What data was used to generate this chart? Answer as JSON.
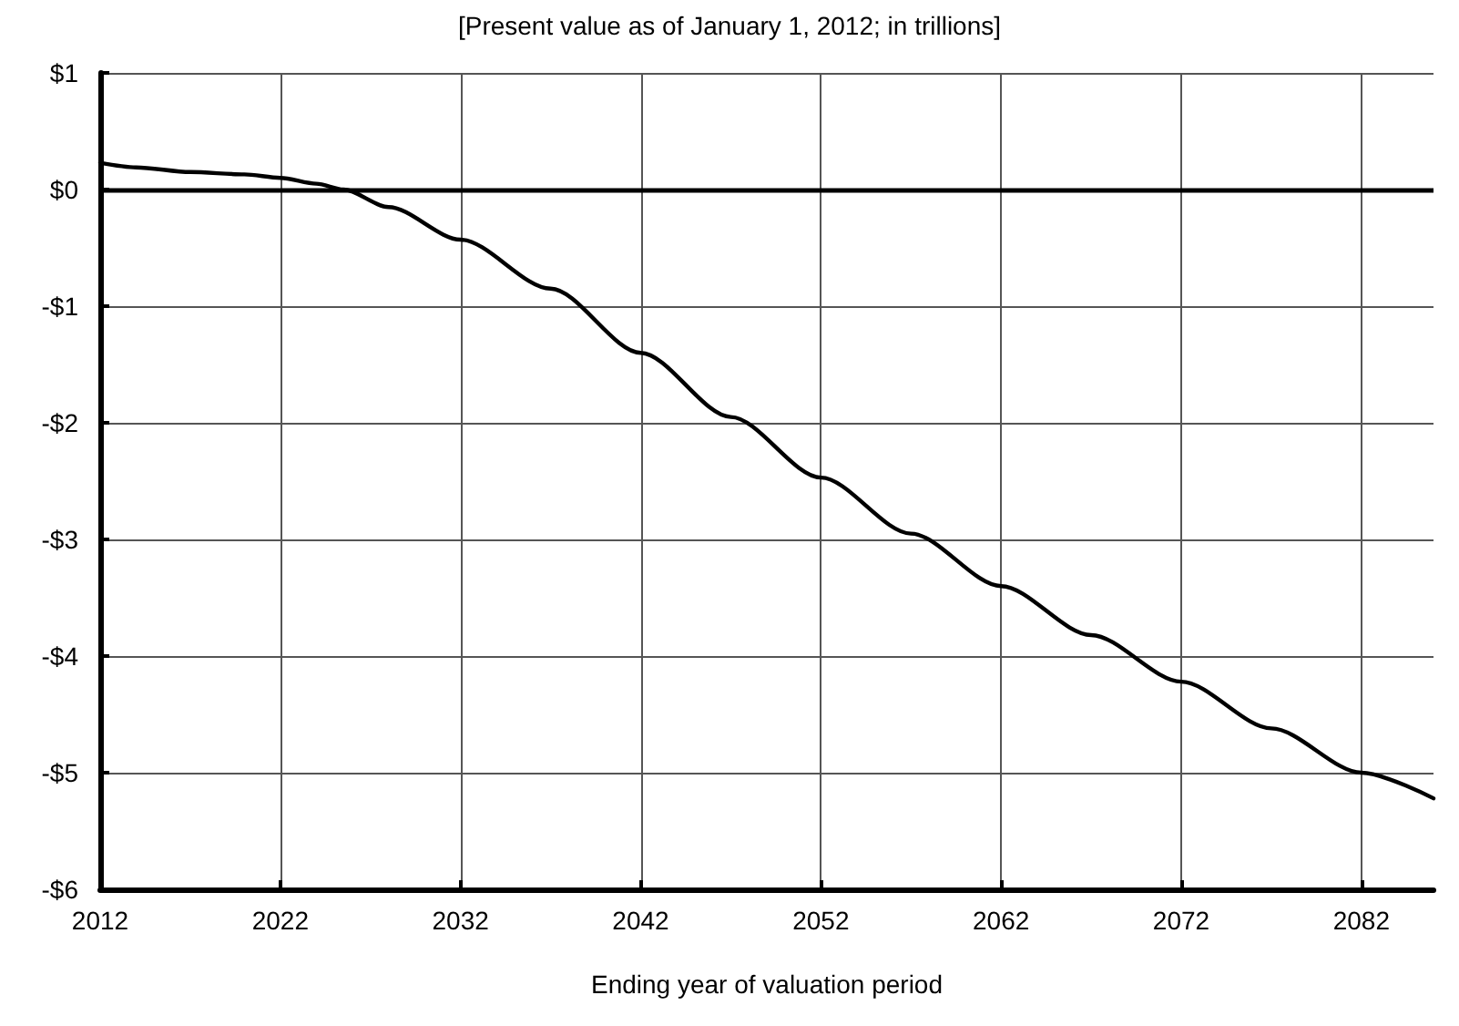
{
  "chart_data": {
    "type": "line",
    "subtitle": "[Present value as of January 1, 2012; in trillions]",
    "xlabel": "Ending year of valuation period",
    "x": [
      2012,
      2014,
      2017,
      2020,
      2022,
      2024,
      2025.5,
      2028,
      2032,
      2037,
      2042,
      2047,
      2052,
      2057,
      2062,
      2067,
      2072,
      2077,
      2082,
      2086
    ],
    "series": [
      {
        "color": "#000000",
        "values": [
          0.23,
          0.19,
          0.15,
          0.13,
          0.1,
          0.05,
          0,
          -0.15,
          -0.43,
          -0.85,
          -1.4,
          -1.95,
          -2.47,
          -2.95,
          -3.4,
          -3.82,
          -4.22,
          -4.62,
          -5.0,
          -5.22
        ]
      }
    ],
    "xlim": [
      2012,
      2086
    ],
    "xticks": [
      2012,
      2022,
      2032,
      2042,
      2052,
      2062,
      2072,
      2082
    ],
    "ylim": [
      -6,
      1
    ],
    "yticks": [
      {
        "value": -6,
        "label": "-$6"
      },
      {
        "value": -5,
        "label": "-$5"
      },
      {
        "value": -4,
        "label": "-$4"
      },
      {
        "value": -3,
        "label": "-$3"
      },
      {
        "value": -2,
        "label": "-$2"
      },
      {
        "value": -1,
        "label": "-$1"
      },
      {
        "value": 0,
        "label": "$0"
      },
      {
        "value": 1,
        "label": "$1"
      }
    ],
    "ref_lines": [
      {
        "axis": "y",
        "value": 0,
        "color": "#000000"
      }
    ],
    "grid": true,
    "marker": "none",
    "line_style": "solid"
  }
}
